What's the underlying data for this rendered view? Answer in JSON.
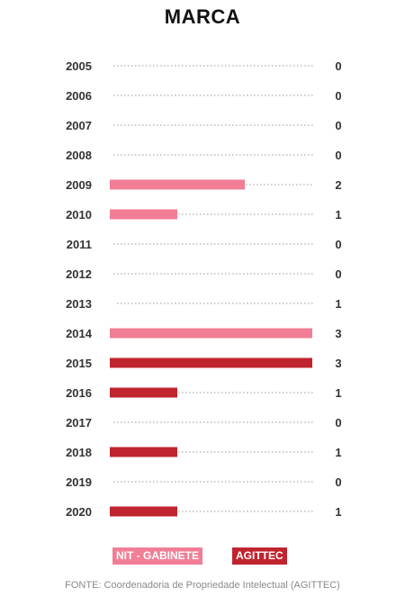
{
  "chart_data": {
    "type": "bar",
    "orientation": "horizontal",
    "title": "MARCA",
    "categories": [
      "2005",
      "2006",
      "2007",
      "2008",
      "2009",
      "2010",
      "2011",
      "2012",
      "2013",
      "2014",
      "2015",
      "2016",
      "2017",
      "2018",
      "2019",
      "2020"
    ],
    "values": [
      0,
      0,
      0,
      0,
      2,
      1,
      0,
      0,
      1,
      3,
      3,
      1,
      0,
      1,
      0,
      1
    ],
    "value_labels": [
      "0",
      "0",
      "0",
      "0",
      "2",
      "1",
      "0",
      "0",
      "1",
      "3",
      "3",
      "1",
      "0",
      "1",
      "0",
      "1"
    ],
    "bar_series": [
      "",
      "",
      "",
      "",
      "nit",
      "nit",
      "",
      "",
      "",
      "nit",
      "agittec",
      "agittec",
      "",
      "agittec",
      "",
      "agittec"
    ],
    "xlim": [
      0,
      3
    ],
    "grid": "dotted guide line per row",
    "legend_position": "bottom",
    "legend": [
      {
        "key": "nit",
        "name": "NIT - GABINETE",
        "color": "#f17e95"
      },
      {
        "key": "agittec",
        "name": "AGITTEC",
        "color": "#c0242f"
      }
    ],
    "source": "FONTE: Coordenadoria de Propriedade Intelectual (AGITTEC)"
  }
}
